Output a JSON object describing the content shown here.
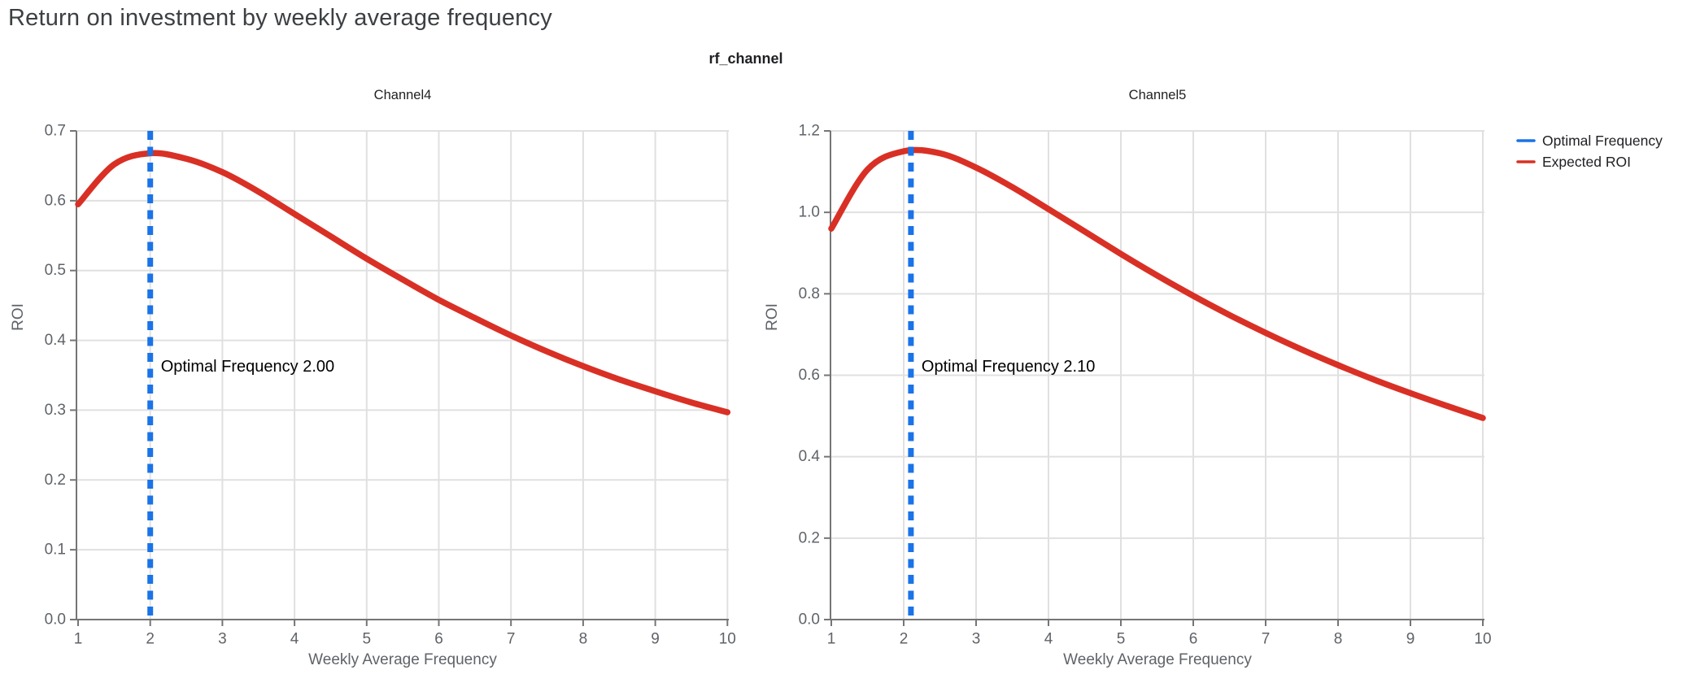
{
  "page": {
    "title": "Return on investment by weekly average frequency",
    "figure_title": "rf_channel"
  },
  "legend": {
    "position": "top-right",
    "items": [
      {
        "label": "Optimal Frequency",
        "color": "#1a73e8"
      },
      {
        "label": "Expected ROI",
        "color": "#d93025"
      }
    ]
  },
  "colors": {
    "roi_curve": "#d93025",
    "optimal_line": "#1a73e8",
    "grid": "#e0e0e0",
    "spine": "#757575",
    "tick_label": "#5f6368",
    "axis_label": "#5f6368",
    "subplot_title": "#212121",
    "page_title": "#3c4043",
    "annotation": "#000000",
    "legend_text": "#202124"
  },
  "chart_data": [
    {
      "type": "line",
      "title": "Channel4",
      "xlabel": "Weekly Average Frequency",
      "ylabel": "ROI",
      "xlim": [
        1,
        10.05
      ],
      "ylim": [
        0,
        0.7
      ],
      "xticks": [
        1,
        2,
        3,
        4,
        5,
        6,
        7,
        8,
        9,
        10
      ],
      "yticks": [
        0.0,
        0.1,
        0.2,
        0.3,
        0.4,
        0.5,
        0.6,
        0.7
      ],
      "ytick_labels": [
        "0.0",
        "0.1",
        "0.2",
        "0.3",
        "0.4",
        "0.5",
        "0.6",
        "0.7"
      ],
      "grid": true,
      "optimal_frequency": 2.0,
      "annotation_text": "Optimal Frequency  2.00",
      "series": [
        {
          "name": "Expected ROI",
          "x": [
            1.0,
            1.5,
            2.0,
            2.5,
            3.0,
            3.5,
            4.0,
            4.5,
            5.0,
            5.5,
            6.0,
            6.5,
            7.0,
            7.5,
            8.0,
            8.5,
            9.0,
            9.5,
            10.0
          ],
          "y": [
            0.595,
            0.652,
            0.668,
            0.66,
            0.641,
            0.613,
            0.581,
            0.549,
            0.517,
            0.487,
            0.458,
            0.432,
            0.407,
            0.384,
            0.363,
            0.344,
            0.327,
            0.311,
            0.297
          ]
        }
      ]
    },
    {
      "type": "line",
      "title": "Channel5",
      "xlabel": "Weekly Average Frequency",
      "ylabel": "ROI",
      "xlim": [
        1,
        10.05
      ],
      "ylim": [
        0,
        1.2
      ],
      "xticks": [
        1,
        2,
        3,
        4,
        5,
        6,
        7,
        8,
        9,
        10
      ],
      "yticks": [
        0.0,
        0.2,
        0.4,
        0.6,
        0.8,
        1.0,
        1.2
      ],
      "ytick_labels": [
        "0.0",
        "0.2",
        "0.4",
        "0.6",
        "0.8",
        "1.0",
        "1.2"
      ],
      "grid": true,
      "optimal_frequency": 2.1,
      "annotation_text": "Optimal Frequency  2.10",
      "series": [
        {
          "name": "Expected ROI",
          "x": [
            1.0,
            1.5,
            2.0,
            2.5,
            3.0,
            3.5,
            4.0,
            4.5,
            5.0,
            5.5,
            6.0,
            6.5,
            7.0,
            7.5,
            8.0,
            8.5,
            9.0,
            9.5,
            10.0
          ],
          "y": [
            0.96,
            1.105,
            1.15,
            1.145,
            1.11,
            1.062,
            1.008,
            0.953,
            0.898,
            0.845,
            0.795,
            0.748,
            0.704,
            0.663,
            0.625,
            0.589,
            0.556,
            0.525,
            0.495
          ]
        }
      ]
    }
  ]
}
